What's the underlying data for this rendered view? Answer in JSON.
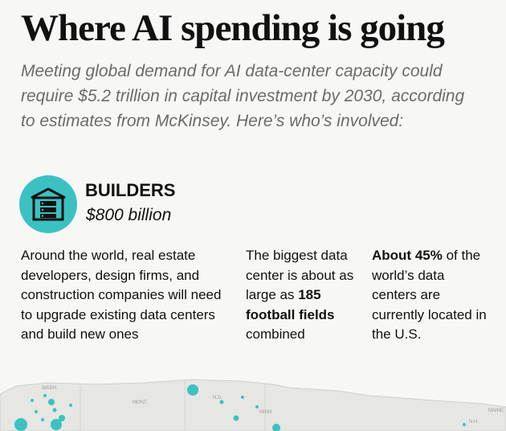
{
  "header": {
    "title": "Where AI spending is going",
    "subtitle": "Meeting global demand for AI data-center capacity could require $5.2 trillion in capital investment by 2030, according to estimates from McKinsey. Here’s who’s involved:"
  },
  "builders": {
    "icon": "server-rack-icon",
    "accent_color": "#3cc1c3",
    "title": "BUILDERS",
    "amount": "$800 billion"
  },
  "facts": {
    "col1": "Around the world, real estate developers, design firms, and construction companies will need to upgrade existing data centers and build new ones",
    "col2_pre": "The biggest data center is about as large as ",
    "col2_bold": "185 football fields",
    "col2_post": " combined",
    "col3_bold": "About 45%",
    "col3_post": " of the world’s data centers are currently located in the U.S."
  },
  "map": {
    "labels": [
      "WASH.",
      "MONT.",
      "N.D.",
      "MINN.",
      "N.H.",
      "MAINE"
    ],
    "dot_color": "#3cc1c3",
    "land_color": "#e6e6e3"
  }
}
